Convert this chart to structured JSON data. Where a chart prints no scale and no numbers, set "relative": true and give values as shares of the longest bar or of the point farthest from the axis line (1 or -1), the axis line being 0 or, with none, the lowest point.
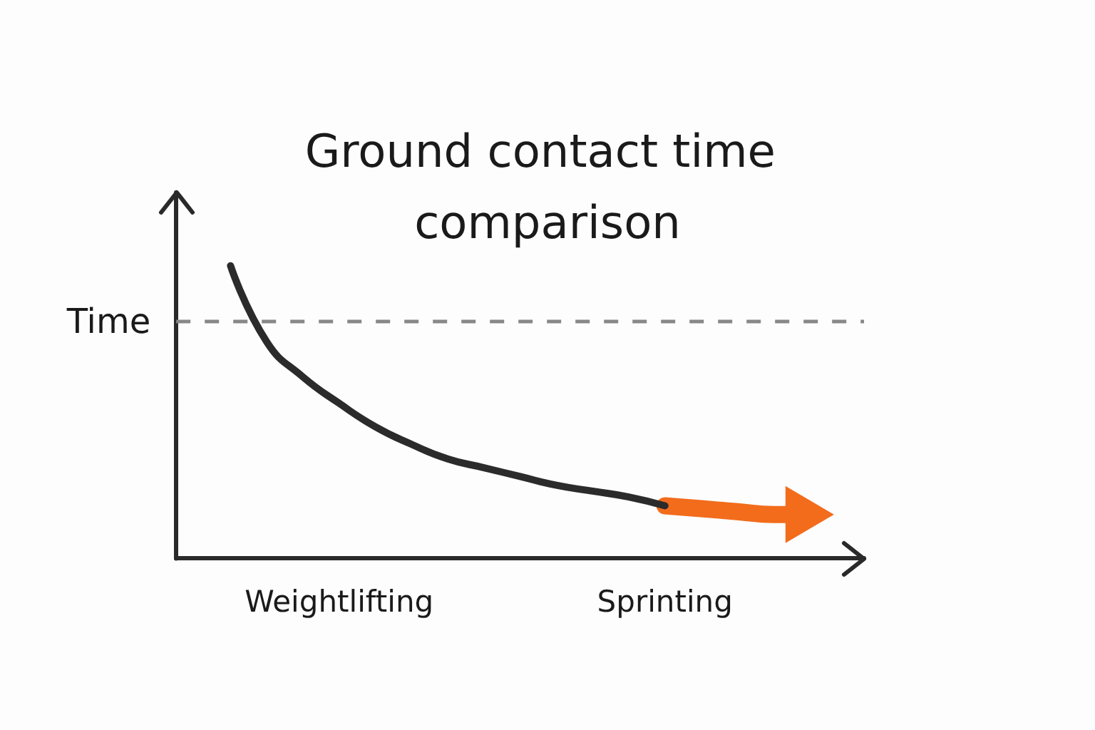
{
  "chart_data": {
    "type": "line",
    "title": "Ground contact time comparison",
    "relative": true,
    "categories": [
      null,
      null,
      null,
      null,
      "Weightlifting",
      null,
      null,
      null,
      null,
      null,
      null,
      null,
      null,
      "Sprinting",
      null,
      null,
      null,
      null,
      null
    ],
    "series": [
      {
        "color": "#2b2b2b",
        "values": [
          null,
          1.0,
          0.74,
          0.62,
          0.53,
          0.45,
          0.39,
          0.34,
          0.31,
          0.28,
          0.25,
          0.23,
          0.21,
          0.18,
          null,
          null,
          null,
          null,
          null
        ]
      },
      {
        "color": "#f26c1c",
        "values": [
          null,
          null,
          null,
          null,
          null,
          null,
          null,
          null,
          null,
          null,
          null,
          null,
          null,
          0.18,
          0.17,
          0.16,
          0.15,
          0.15,
          null
        ]
      }
    ],
    "ref_lines": [
      {
        "axis": "y",
        "value": 0.81,
        "label": "Time",
        "color": "#888888",
        "line_style": "dashed"
      }
    ]
  }
}
